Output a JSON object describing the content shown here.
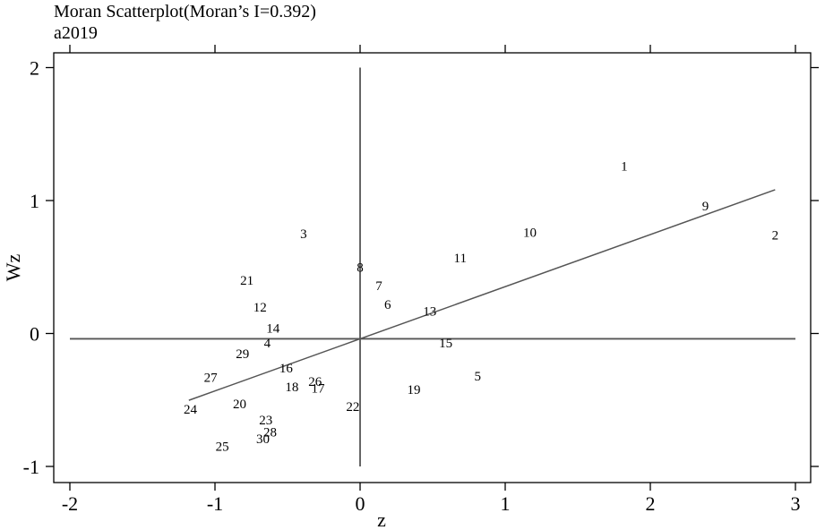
{
  "chart_data": {
    "type": "scatter",
    "title": "Moran Scatterplot(Moran’s I=0.392)",
    "subtitle": "a2019",
    "xlabel": "z",
    "ylabel": "Wz",
    "xlim": [
      -2.2,
      3.1
    ],
    "ylim": [
      -1.1,
      2.1
    ],
    "x_ticks": [
      -2,
      -1,
      0,
      1,
      2,
      3
    ],
    "x_tick_labels": [
      "-2",
      "-1",
      "0",
      "1",
      "2",
      "3"
    ],
    "y_ticks": [
      -1,
      0,
      1,
      2
    ],
    "y_tick_labels": [
      "-1",
      "0",
      "1",
      "2"
    ],
    "reference_lines": {
      "vertical": {
        "x": 0,
        "y_from": -1.0,
        "y_to": 2.0
      },
      "horizontal": {
        "y": -0.04,
        "x_from": -2.0,
        "x_to": 3.0
      }
    },
    "fit_line": {
      "slope": 0.392,
      "intercept": -0.04,
      "x_from": -1.18,
      "x_to": 2.86
    },
    "grid": false,
    "points": [
      {
        "label": "1",
        "x": 1.82,
        "y": 1.26
      },
      {
        "label": "2",
        "x": 2.86,
        "y": 0.74
      },
      {
        "label": "3",
        "x": -0.39,
        "y": 0.75
      },
      {
        "label": "4",
        "x": -0.64,
        "y": -0.07
      },
      {
        "label": "5",
        "x": 0.81,
        "y": -0.32
      },
      {
        "label": "6",
        "x": 0.19,
        "y": 0.22
      },
      {
        "label": "7",
        "x": 0.13,
        "y": 0.36
      },
      {
        "label": "8",
        "x": 0.0,
        "y": 0.5
      },
      {
        "label": "9",
        "x": 2.38,
        "y": 0.96
      },
      {
        "label": "10",
        "x": 1.17,
        "y": 0.76
      },
      {
        "label": "11",
        "x": 0.69,
        "y": 0.57
      },
      {
        "label": "12",
        "x": -0.69,
        "y": 0.2
      },
      {
        "label": "13",
        "x": 0.48,
        "y": 0.17
      },
      {
        "label": "14",
        "x": -0.6,
        "y": 0.04
      },
      {
        "label": "15",
        "x": 0.59,
        "y": -0.07
      },
      {
        "label": "16",
        "x": -0.51,
        "y": -0.26
      },
      {
        "label": "17",
        "x": -0.29,
        "y": -0.41
      },
      {
        "label": "18",
        "x": -0.47,
        "y": -0.4
      },
      {
        "label": "19",
        "x": 0.37,
        "y": -0.42
      },
      {
        "label": "20",
        "x": -0.83,
        "y": -0.53
      },
      {
        "label": "21",
        "x": -0.78,
        "y": 0.4
      },
      {
        "label": "22",
        "x": -0.05,
        "y": -0.55
      },
      {
        "label": "23",
        "x": -0.65,
        "y": -0.65
      },
      {
        "label": "24",
        "x": -1.17,
        "y": -0.57
      },
      {
        "label": "25",
        "x": -0.95,
        "y": -0.85
      },
      {
        "label": "26",
        "x": -0.31,
        "y": -0.36
      },
      {
        "label": "27",
        "x": -1.03,
        "y": -0.33
      },
      {
        "label": "28",
        "x": -0.62,
        "y": -0.74
      },
      {
        "label": "29",
        "x": -0.81,
        "y": -0.15
      },
      {
        "label": "30",
        "x": -0.67,
        "y": -0.79
      }
    ]
  }
}
